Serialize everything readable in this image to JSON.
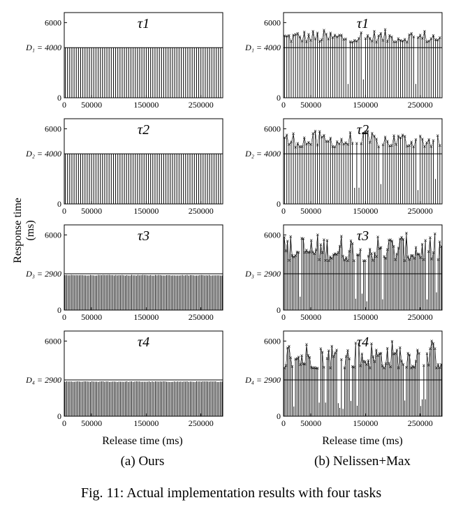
{
  "figure": {
    "caption": "Fig. 11: Actual implementation results with four tasks",
    "ylabel_line1": "Response time",
    "ylabel_line2": "(ms)",
    "xlabel": "Release time (ms)",
    "col_a": "(a) Ours",
    "col_b": "(b) Nelissen+Max"
  },
  "chart_data": {
    "type": "bar",
    "xlim": [
      0,
      290000
    ],
    "ylim": [
      0,
      6800
    ],
    "xticks": [
      0,
      50000,
      150000,
      250000
    ],
    "xtick_labels": [
      "0",
      "50000",
      "150000",
      "250000"
    ],
    "ytick_labels": [
      "0",
      "6000"
    ],
    "panels": [
      {
        "task": "τ1",
        "sub": "1",
        "deadline_label": "D₁ = 4000",
        "deadline": 4000,
        "period": 4000,
        "ours_level": 4000,
        "ours_jitter": 0,
        "nm_base": 4400,
        "nm_amp": 1000
      },
      {
        "task": "τ2",
        "sub": "2",
        "deadline_label": "D₂ = 4000",
        "deadline": 4000,
        "period": 4000,
        "ours_level": 4000,
        "ours_jitter": 0,
        "nm_base": 4500,
        "nm_amp": 1300
      },
      {
        "task": "τ3",
        "sub": "3",
        "deadline_label": "D₃ = 2900",
        "deadline": 2900,
        "period": 2900,
        "ours_level": 2780,
        "ours_jitter": 60,
        "nm_base": 3900,
        "nm_amp": 2200
      },
      {
        "task": "τ4",
        "sub": "4",
        "deadline_label": "D₄ = 2900",
        "deadline": 2900,
        "period": 2900,
        "ours_level": 2760,
        "ours_jitter": 60,
        "nm_base": 3800,
        "nm_amp": 2300
      }
    ]
  }
}
